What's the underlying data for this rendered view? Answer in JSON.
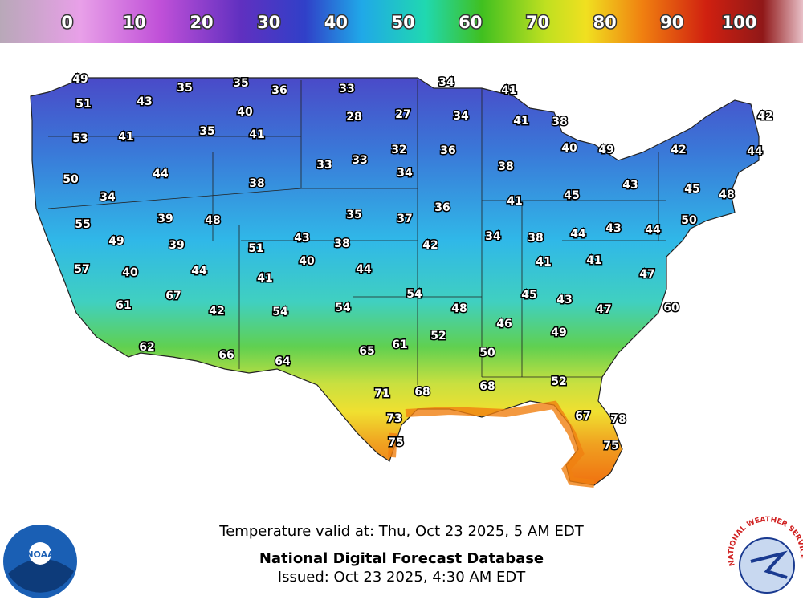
{
  "color_scale": {
    "ticks": [
      0,
      10,
      20,
      30,
      40,
      50,
      60,
      70,
      80,
      90,
      100
    ],
    "lim": [
      -10,
      109.5
    ]
  },
  "temperatures": [
    49,
    35,
    35,
    36,
    33,
    34,
    41,
    51,
    43,
    40,
    28,
    27,
    34,
    41,
    38,
    42,
    53,
    41,
    35,
    41,
    32,
    36,
    40,
    49,
    42,
    44,
    33,
    33,
    38,
    44,
    50,
    34,
    38,
    43,
    45,
    48,
    45,
    34,
    41,
    36,
    35,
    37,
    39,
    48,
    50,
    55,
    43,
    44,
    44,
    34,
    38,
    43,
    42,
    49,
    39,
    38,
    51,
    40,
    41,
    41,
    44,
    44,
    57,
    40,
    47,
    41,
    54,
    45,
    43,
    67,
    60,
    47,
    48,
    61,
    42,
    54,
    54,
    46,
    49,
    52,
    61,
    65,
    50,
    62,
    66,
    64,
    52,
    71,
    68,
    68,
    73,
    67,
    78,
    75,
    75
  ],
  "footer": {
    "valid": "Temperature valid at: Thu, Oct 23 2025, 5 AM EDT",
    "title": "National Digital Forecast Database",
    "issued": "Issued: Oct 23 2025, 4:30 AM EDT"
  },
  "logos": {
    "noaa": "NOAA",
    "nws": "NATIONAL WEATHER SERVICE"
  }
}
